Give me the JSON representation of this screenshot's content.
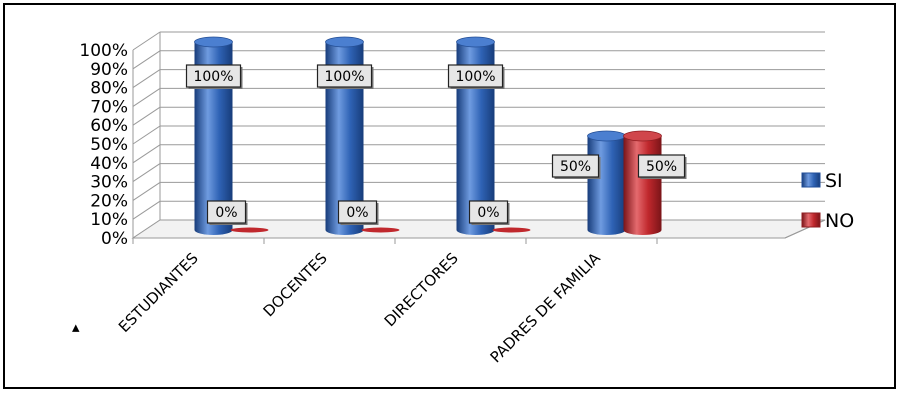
{
  "chart_data": {
    "type": "bar",
    "categories": [
      "ESTUDIANTES",
      "DOCENTES",
      "DIRECTORES",
      "PADRES DE FAMILIA"
    ],
    "series": [
      {
        "name": "SI",
        "values": [
          100,
          100,
          100,
          50
        ],
        "color": "#2f63b5"
      },
      {
        "name": "NO",
        "values": [
          0,
          0,
          0,
          50
        ],
        "color": "#c0282d"
      }
    ],
    "data_labels": {
      "SI": [
        "100%",
        "100%",
        "100%",
        "50%"
      ],
      "NO": [
        "0%",
        "0%",
        "0%",
        "50%"
      ]
    },
    "y_ticks": [
      "0%",
      "10%",
      "20%",
      "30%",
      "40%",
      "50%",
      "60%",
      "70%",
      "80%",
      "90%",
      "100%"
    ],
    "ylim": [
      0,
      100
    ],
    "y_unit": "%",
    "grid": true,
    "legend_position": "right",
    "stray_mark": "▴"
  }
}
